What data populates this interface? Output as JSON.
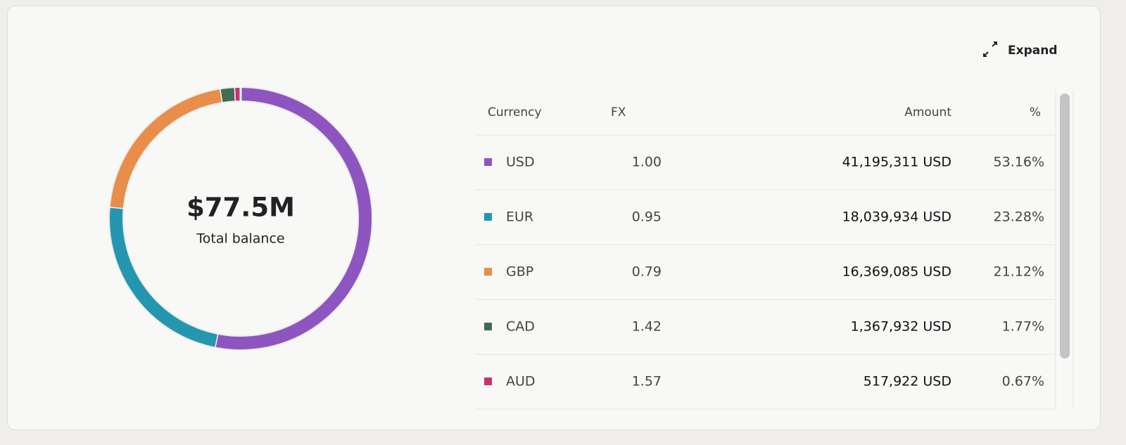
{
  "chart_data": {
    "type": "donut",
    "center_value": "$77.5M",
    "center_label": "Total balance",
    "categories": [
      "USD",
      "EUR",
      "GBP",
      "CAD",
      "AUD"
    ],
    "values": [
      53.16,
      23.28,
      21.12,
      1.77,
      0.67
    ],
    "value_labels": [
      "53.16%",
      "23.28%",
      "21.12%",
      "1.77%",
      "0.67%"
    ],
    "colors": [
      "#8e55c0",
      "#2596b0",
      "#e88d4a",
      "#436b54",
      "#c8336f"
    ]
  },
  "expand_button": "Expand",
  "table": {
    "columns": [
      "Currency",
      "FX",
      "Amount",
      "%"
    ],
    "rows": [
      [
        "1.00",
        "41,195,311 USD"
      ],
      [
        "0.95",
        "18,039,934 USD"
      ],
      [
        "0.79",
        "16,369,085 USD"
      ],
      [
        "1.42",
        "1,367,932 USD"
      ],
      [
        "1.57",
        "517,922 USD"
      ]
    ]
  }
}
